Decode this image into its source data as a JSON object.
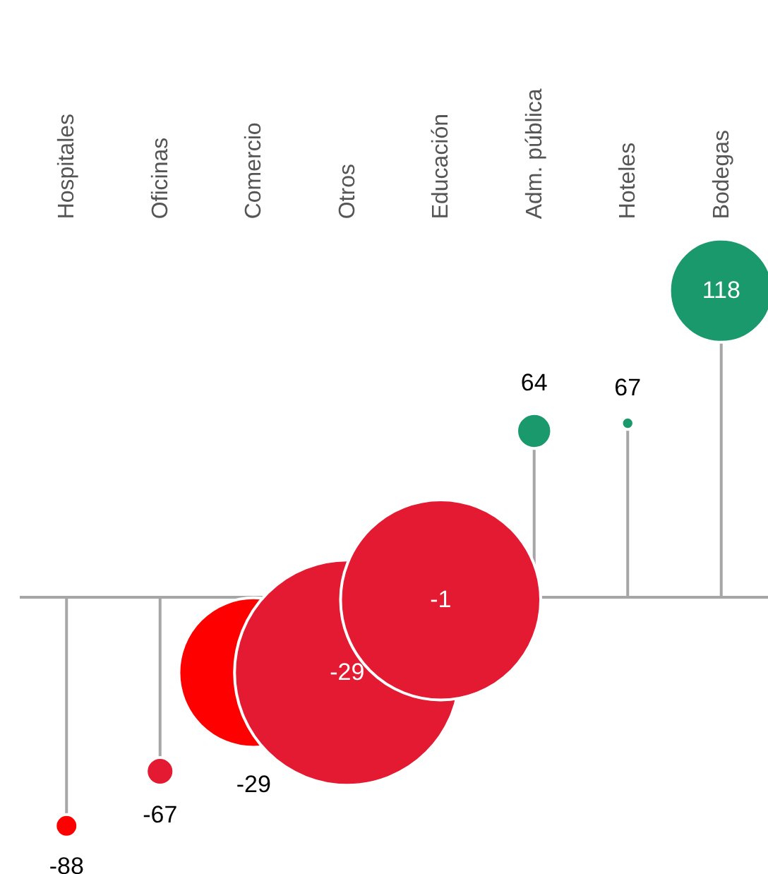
{
  "chart_data": {
    "type": "lollipop",
    "categories": [
      "Hospitales",
      "Oficinas",
      "Comercio",
      "Otros",
      "Educación",
      "Adm. pública",
      "Hoteles",
      "Bodegas"
    ],
    "values": [
      -88,
      -67,
      -29,
      -29,
      -1,
      64,
      67,
      118
    ],
    "sizes": [
      0.01,
      0.015,
      0.44,
      1,
      0.79,
      0.024,
      0.003,
      0.21
    ],
    "colors": [
      "#ff0000",
      "#e31a32",
      "#ff0000",
      "#e31a32",
      "#e31a32",
      "#1a9a6c",
      "#1a9a6c",
      "#1a9a6c"
    ],
    "data_labels": true,
    "tick_labels": "x",
    "grid": false
  }
}
